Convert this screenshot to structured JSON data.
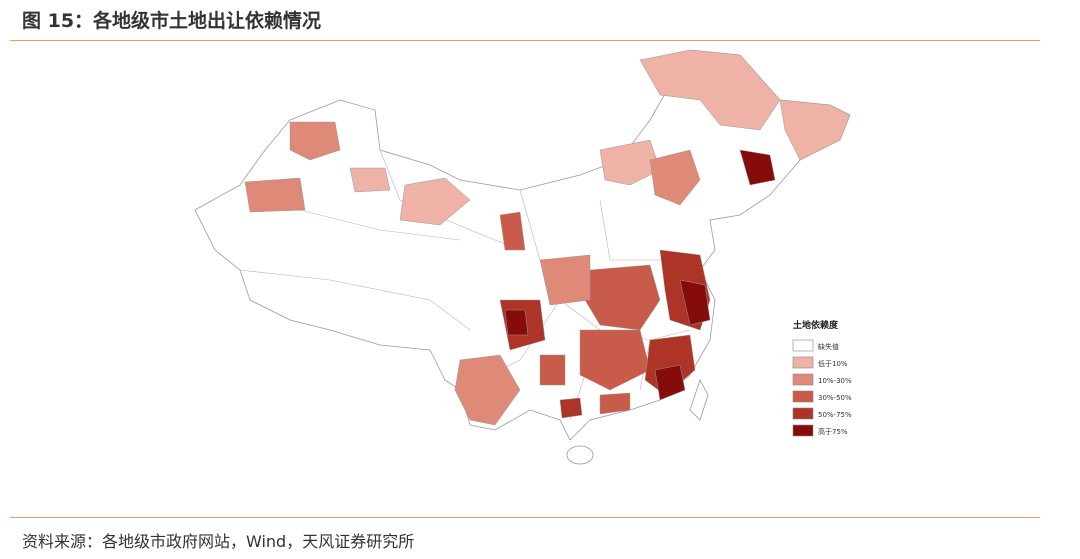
{
  "header": {
    "title": "图 15：各地级市土地出让依赖情况"
  },
  "legend": {
    "title": "土地依赖度",
    "items": [
      {
        "label": "缺失值",
        "color": "#ffffff"
      },
      {
        "label": "低于10%",
        "color": "#eeb3a6"
      },
      {
        "label": "10%-30%",
        "color": "#df8979"
      },
      {
        "label": "30%-50%",
        "color": "#c95b4b"
      },
      {
        "label": "50%-75%",
        "color": "#ad3426"
      },
      {
        "label": "高于75%",
        "color": "#860b0b"
      }
    ]
  },
  "footer": {
    "source": "资料来源：各地级市政府网站，Wind，天风证券研究所"
  }
}
